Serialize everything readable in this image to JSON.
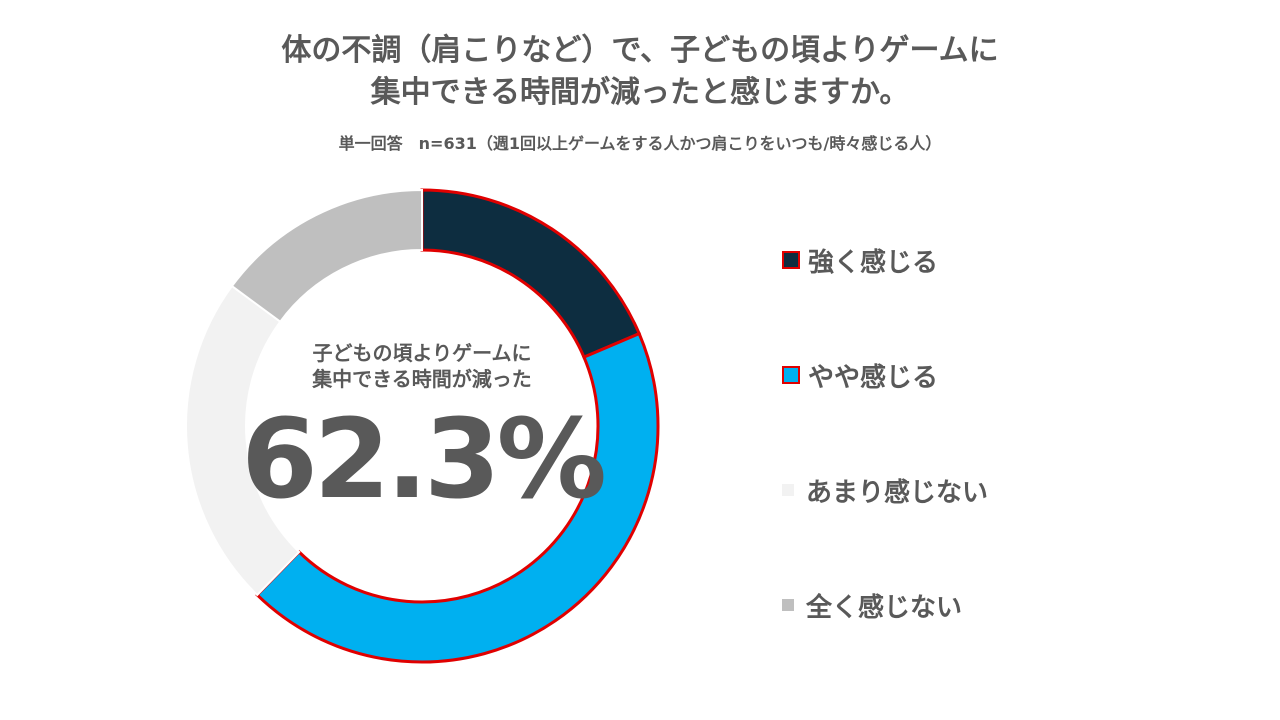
{
  "header": {
    "title_line1": "体の不調（肩こりなど）で、子どもの頃よりゲームに",
    "title_line2": "集中できる時間が減ったと感じますか。",
    "subtitle": "単一回答　n=631（週1回以上ゲームをする人かつ肩こりをいつも/時々感じる人）"
  },
  "center": {
    "label_line1": "子どもの頃よりゲームに",
    "label_line2": "集中できる時間が減った",
    "value": "62.3%"
  },
  "chart_data": {
    "type": "pie",
    "variant": "donut",
    "title": "体の不調（肩こりなど）で、子どもの頃よりゲームに集中できる時間が減ったと感じますか。",
    "categories": [
      "強く感じる",
      "やや感じる",
      "あまり感じない",
      "全く感じない"
    ],
    "values": [
      18.6,
      43.7,
      22.8,
      14.9
    ],
    "colors": [
      "#0d2d40",
      "#00b0f0",
      "#f2f2f2",
      "#bfbfbf"
    ],
    "highlight_border": "#e00000",
    "highlighted": [
      true,
      true,
      false,
      false
    ],
    "legend_position": "right"
  }
}
